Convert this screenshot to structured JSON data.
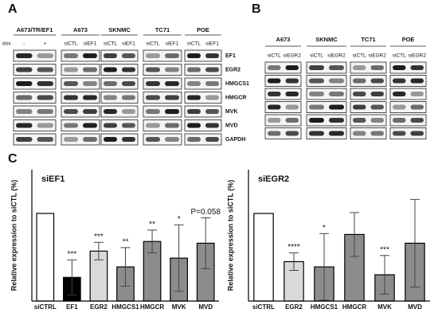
{
  "panel_a": {
    "label": "A",
    "groups": [
      "A673/TR/EF1",
      "A673",
      "SKNMC",
      "TC71",
      "POE"
    ],
    "dox_label": "dox",
    "lanes": [
      [
        "-",
        "+"
      ],
      [
        "siCTL",
        "siEF1"
      ],
      [
        "siCTL",
        "siEF1"
      ],
      [
        "siCTL",
        "siEF1"
      ],
      [
        "siCTL",
        "siEF1"
      ]
    ],
    "proteins": [
      "EF1",
      "EGR2",
      "HMGCS1",
      "HMGCR",
      "MVK",
      "MVD",
      "GAPDH"
    ]
  },
  "panel_b": {
    "label": "B",
    "groups": [
      "A673",
      "SKNMC",
      "TC71",
      "POE"
    ],
    "lanes": [
      [
        "siCTL",
        "siEGR2"
      ],
      [
        "siCTL",
        "siEGR2"
      ],
      [
        "siCTL",
        "siEGR2"
      ],
      [
        "siCTL",
        "siEGR2"
      ]
    ]
  },
  "panel_c_label": "C",
  "chart_data": [
    {
      "type": "bar",
      "title": "siEF1",
      "y_label": "Relative expression to siCTL (%)",
      "categories": [
        "siCTRL",
        "EF1",
        "EGR2",
        "HMGCS1",
        "HMGCR",
        "MVK",
        "MVD"
      ],
      "values": [
        100,
        27,
        57,
        39,
        68,
        49,
        66
      ],
      "errors": [
        null,
        20,
        10,
        22,
        13,
        38,
        29
      ],
      "colors": [
        "#ffffff",
        "#000000",
        "#d9d9d9",
        "#8c8c8c",
        "#8c8c8c",
        "#8c8c8c",
        "#8c8c8c"
      ],
      "annotations": [
        null,
        "***",
        "***",
        "**",
        "**",
        "*",
        "P=0.058"
      ],
      "ylim": [
        0,
        150
      ]
    },
    {
      "type": "bar",
      "title": "siEGR2",
      "y_label": "Relative expression to siCTL (%)",
      "categories": [
        "siCTRL",
        "EGR2",
        "HMGCS1",
        "HMGCR",
        "MVK",
        "MVD"
      ],
      "values": [
        100,
        45,
        39,
        76,
        30,
        66
      ],
      "errors": [
        null,
        10,
        38,
        25,
        22,
        50
      ],
      "colors": [
        "#ffffff",
        "#d9d9d9",
        "#8c8c8c",
        "#8c8c8c",
        "#8c8c8c",
        "#8c8c8c"
      ],
      "annotations": [
        null,
        "****",
        "*",
        null,
        "***",
        null
      ],
      "ylim": [
        0,
        150
      ]
    }
  ]
}
